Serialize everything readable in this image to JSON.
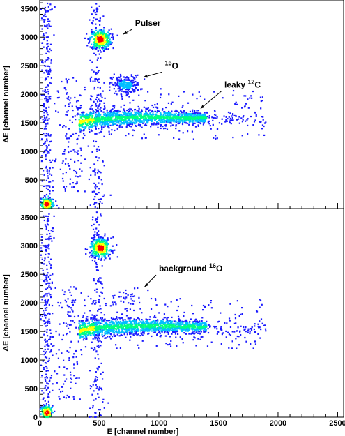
{
  "chart_data": [
    {
      "type": "heatmap",
      "panel": "top",
      "xlabel": "",
      "ylabel": "ΔE [channel number]",
      "xlim": [
        0,
        2550
      ],
      "ylim": [
        0,
        3650
      ],
      "x_ticks": [
        0,
        500,
        1000,
        1500,
        2000,
        2500
      ],
      "y_ticks": [
        "500",
        "1000",
        "1500",
        "2000",
        "2500",
        "3000",
        "3500"
      ],
      "colormap": [
        "#1a1aff",
        "#00bfff",
        "#00ff80",
        "#ffff00",
        "#ff0000"
      ],
      "annotations": [
        {
          "text": "Pulser",
          "sup": "",
          "x": 800,
          "y": 3200,
          "arrow_to": [
            700,
            3050
          ]
        },
        {
          "text": "O",
          "sup": "16",
          "x": 1050,
          "y": 2450,
          "arrow_to": [
            870,
            2300
          ]
        },
        {
          "text": "leaky ",
          "sup": "12",
          "after": "C",
          "x": 1550,
          "y": 2120,
          "arrow_to": [
            1350,
            1750
          ]
        }
      ],
      "clusters": [
        {
          "name": "pulser",
          "x": 510,
          "y": 2960,
          "sx": 45,
          "sy": 90,
          "n": 320,
          "peak": 1.0
        },
        {
          "name": "16O",
          "x": 720,
          "y": 2170,
          "sx": 60,
          "sy": 80,
          "n": 220,
          "peak": 0.25
        },
        {
          "name": "12C band",
          "x_from": 330,
          "x_to": 1400,
          "y_from": 1500,
          "y_to": 1620,
          "n": 1400
        },
        {
          "name": "origin",
          "x": 60,
          "y": 80,
          "sx": 30,
          "sy": 70,
          "n": 140,
          "peak": 1.0
        }
      ]
    },
    {
      "type": "heatmap",
      "panel": "bottom",
      "xlabel": "E [channel number]",
      "ylabel": "ΔE [channel number]",
      "xlim": [
        0,
        2550
      ],
      "ylim": [
        0,
        3650
      ],
      "x_ticks": [
        "0",
        "500",
        "1000",
        "1500",
        "2000",
        "2500"
      ],
      "y_ticks": [
        "0",
        "500",
        "1000",
        "1500",
        "2000",
        "2500",
        "3000",
        "3500"
      ],
      "colormap": [
        "#1a1aff",
        "#00bfff",
        "#00ff80",
        "#ffff00",
        "#ff0000"
      ],
      "annotations": [
        {
          "text": "background ",
          "sup": "16",
          "after": "O",
          "x": 1000,
          "y": 2550,
          "arrow_to": [
            880,
            2280
          ]
        }
      ],
      "clusters": [
        {
          "name": "pulser",
          "x": 510,
          "y": 2960,
          "sx": 45,
          "sy": 90,
          "n": 320,
          "peak": 1.0
        },
        {
          "name": "background 16O",
          "x": 720,
          "y": 2100,
          "sx": 80,
          "sy": 90,
          "n": 30,
          "peak": 0.1
        },
        {
          "name": "12C band",
          "x_from": 330,
          "x_to": 1400,
          "y_from": 1500,
          "y_to": 1620,
          "n": 1400
        },
        {
          "name": "origin",
          "x": 60,
          "y": 80,
          "sx": 30,
          "sy": 70,
          "n": 140,
          "peak": 1.0
        }
      ]
    }
  ]
}
